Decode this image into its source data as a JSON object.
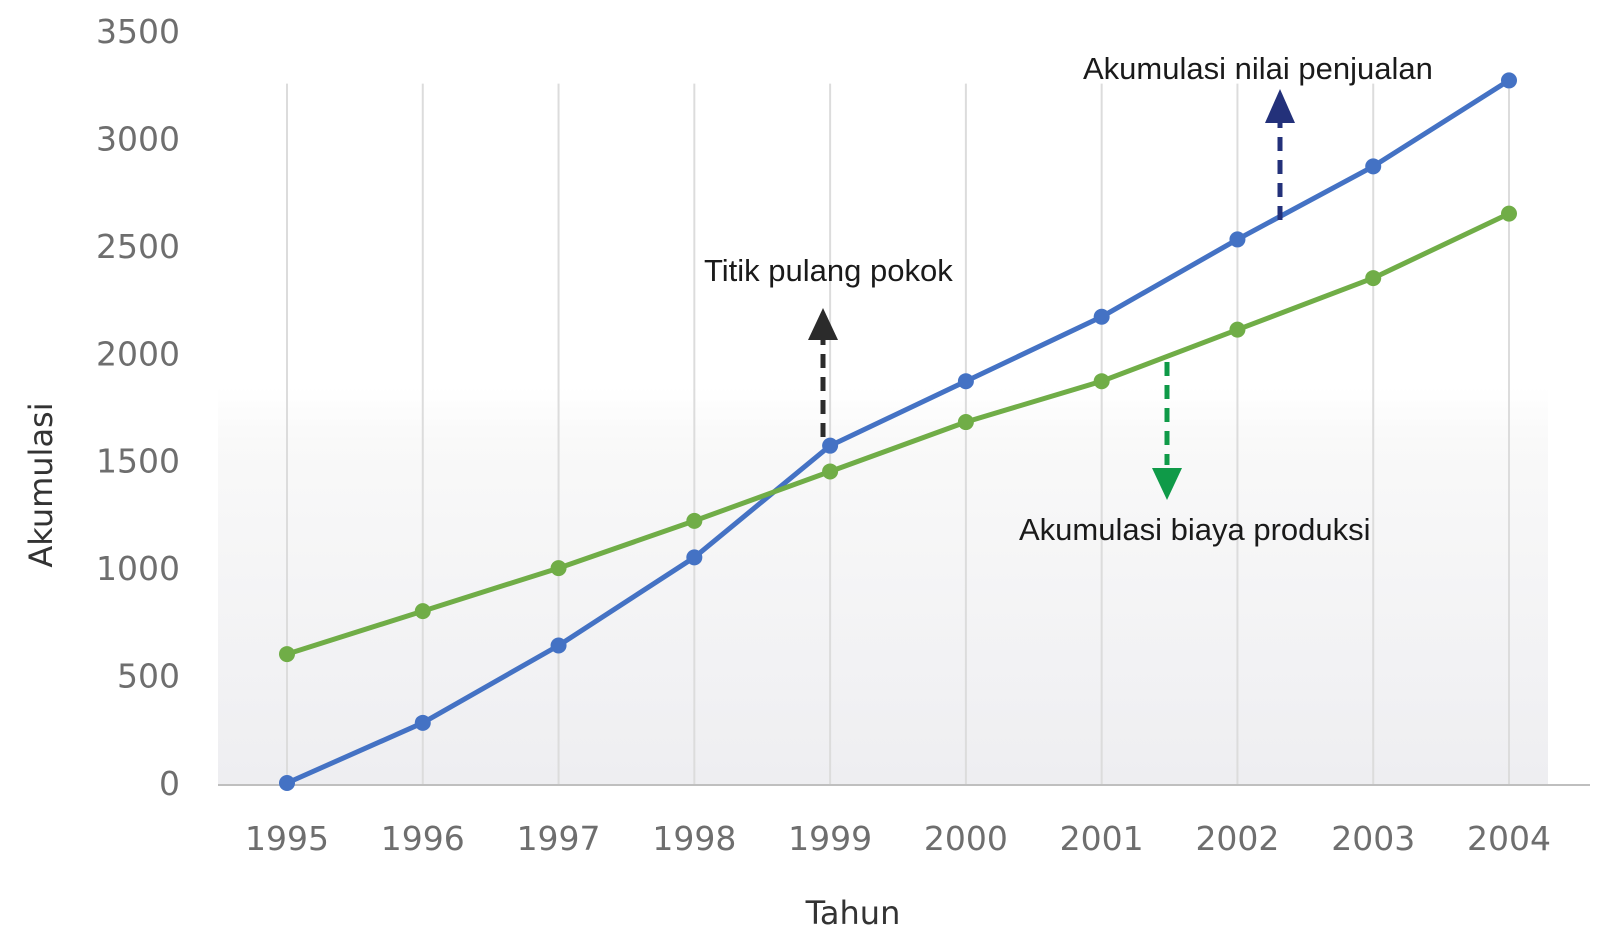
{
  "chart_data": {
    "type": "line",
    "title": "",
    "xlabel": "Tahun",
    "ylabel": "Akumulasi",
    "categories": [
      "1995",
      "1996",
      "1997",
      "1998",
      "1999",
      "2000",
      "2001",
      "2002",
      "2003",
      "2004"
    ],
    "y_ticks": [
      "0",
      "500",
      "1000",
      "1500",
      "2000",
      "2500",
      "3000",
      "3500"
    ],
    "ylim": [
      0,
      3500
    ],
    "grid": "vertical lines at each year",
    "series": [
      {
        "values": [
          0,
          280,
          640,
          1050,
          1570,
          1870,
          2170,
          2530,
          2870,
          3270
        ],
        "color": "#4472c4"
      },
      {
        "values": [
          600,
          800,
          1000,
          1220,
          1450,
          1680,
          1870,
          2110,
          2350,
          2650
        ],
        "color": "#70ad47"
      }
    ],
    "annotations": [
      {
        "text": "Akumulasi nilai penjualan",
        "arrow": "up",
        "arrow_color": "#23317a"
      },
      {
        "text": "Titik pulang pokok",
        "arrow": "up",
        "arrow_color": "#2b2b2b"
      },
      {
        "text": "Akumulasi biaya produksi",
        "arrow": "down",
        "arrow_color": "#0f9a48"
      }
    ]
  }
}
